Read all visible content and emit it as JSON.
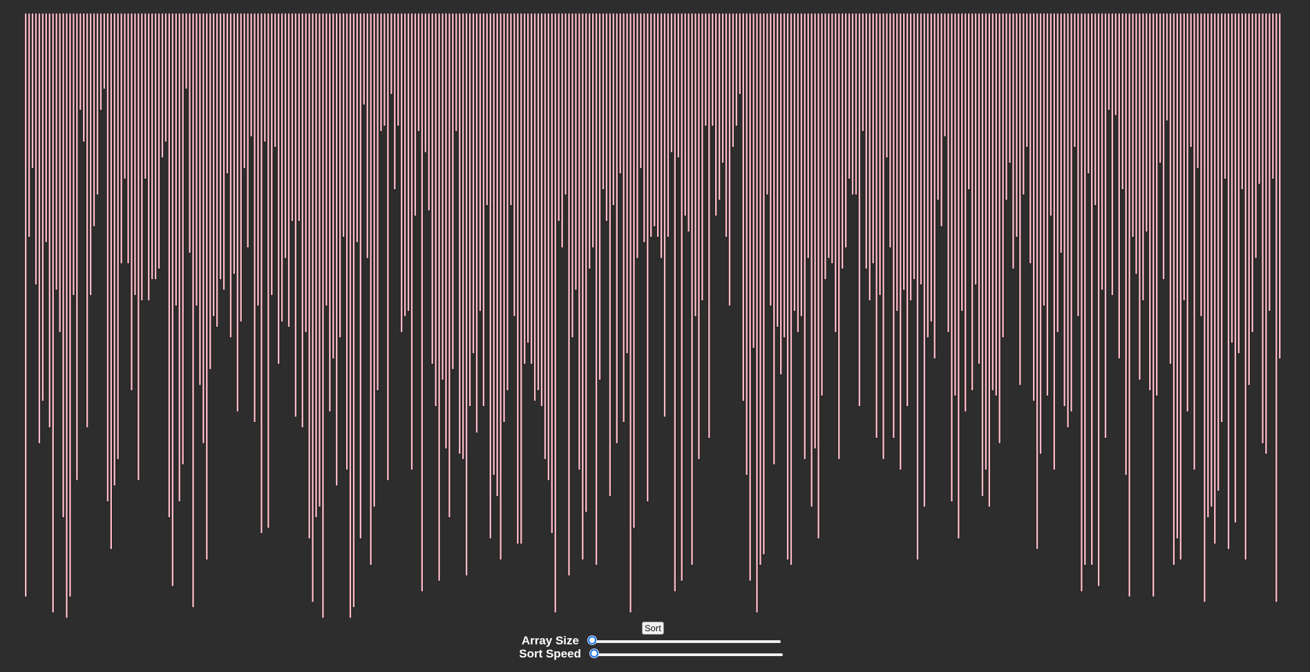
{
  "app": {
    "title": ""
  },
  "colors": {
    "background": "#2e2d2d",
    "bar_fill": "#ffbcc9",
    "bar_border": "#1c1c1c",
    "slider_accent": "#1a73e8"
  },
  "sort_button": {
    "label": "Sort"
  },
  "controls": {
    "array_size": {
      "label": "Array Size",
      "value_fraction": 0.0
    },
    "sort_speed": {
      "label": "Sort Speed",
      "value_fraction": 0.0
    }
  },
  "array": {
    "max_value": 100,
    "values": [
      96,
      28,
      15,
      37,
      67,
      59,
      29,
      64,
      99,
      38,
      46,
      81,
      100,
      96,
      39,
      74,
      4,
      10,
      64,
      39,
      26,
      20,
      4,
      0,
      78,
      87,
      75,
      70,
      33,
      17,
      33,
      57,
      39,
      74,
      40,
      17,
      40,
      36,
      36,
      34,
      13,
      10,
      81,
      94,
      41,
      78,
      71,
      0,
      31,
      98,
      41,
      56,
      67,
      89,
      53,
      43,
      45,
      36,
      38,
      16,
      47,
      35,
      61,
      44,
      15,
      30,
      9,
      63,
      41,
      84,
      10,
      83,
      39,
      11,
      52,
      44,
      32,
      45,
      25,
      62,
      25,
      64,
      46,
      85,
      97,
      81,
      79,
      100,
      41,
      61,
      51,
      75,
      47,
      28,
      72,
      100,
      98,
      29,
      85,
      3,
      32,
      90,
      79,
      57,
      8,
      7,
      74,
      1,
      19,
      7,
      46,
      43,
      42,
      72,
      24,
      8,
      95,
      12,
      23,
      52,
      60,
      93,
      55,
      68,
      81,
      53,
      8,
      69,
      70,
      92,
      60,
      50,
      65,
      42,
      60,
      22,
      85,
      73,
      77,
      89,
      63,
      57,
      22,
      43,
      86,
      86,
      52,
      48,
      52,
      59,
      57,
      60,
      70,
      74,
      84,
      99,
      25,
      30,
      20,
      92,
      47,
      38,
      72,
      89,
      80,
      34,
      30,
      90,
      55,
      19,
      25,
      77,
      22,
      67,
      16,
      63,
      50,
      99,
      83,
      32,
      15,
      29,
      78,
      28,
      26,
      28,
      32,
      62,
      28,
      12,
      95,
      13,
      93,
      24,
      27,
      90,
      43,
      70,
      40,
      7,
      66,
      7,
      24,
      21,
      14,
      28,
      41,
      11,
      7,
      1,
      59,
      73,
      93,
      49,
      99,
      90,
      88,
      20,
      41,
      71,
      45,
      54,
      47,
      89,
      90,
      42,
      46,
      43,
      70,
      32,
      79,
      68,
      85,
      58,
      36,
      32,
      33,
      46,
      70,
      34,
      30,
      17,
      20,
      20,
      60,
      8,
      34,
      40,
      33,
      66,
      39,
      70,
      13,
      30,
      66,
      42,
      72,
      38,
      60,
      40,
      36,
      89,
      37,
      79,
      47,
      44,
      51,
      21,
      26,
      9,
      46,
      78,
      58,
      85,
      42,
      61,
      19,
      57,
      37,
      52,
      77,
      72,
      79,
      57,
      58,
      67,
      47,
      21,
      14,
      34,
      28,
      56,
      20,
      11,
      33,
      59,
      87,
      69,
      41,
      58,
      24,
      72,
      46,
      31,
      60,
      64,
      61,
      11,
      43,
      95,
      90,
      16,
      90,
      22,
      94,
      38,
      66,
      4,
      39,
      5,
      51,
      19,
      73,
      96,
      28,
      35,
      55,
      40,
      27,
      57,
      96,
      58,
      14,
      36,
      6,
      52,
      90,
      85,
      89,
      40,
      61,
      11,
      72,
      15,
      43,
      97,
      81,
      79,
      86,
      76,
      63,
      17,
      87,
      48,
      82,
      50,
      19,
      89,
      56,
      46,
      32,
      18,
      67,
      69,
      42,
      17,
      97,
      51
    ]
  }
}
